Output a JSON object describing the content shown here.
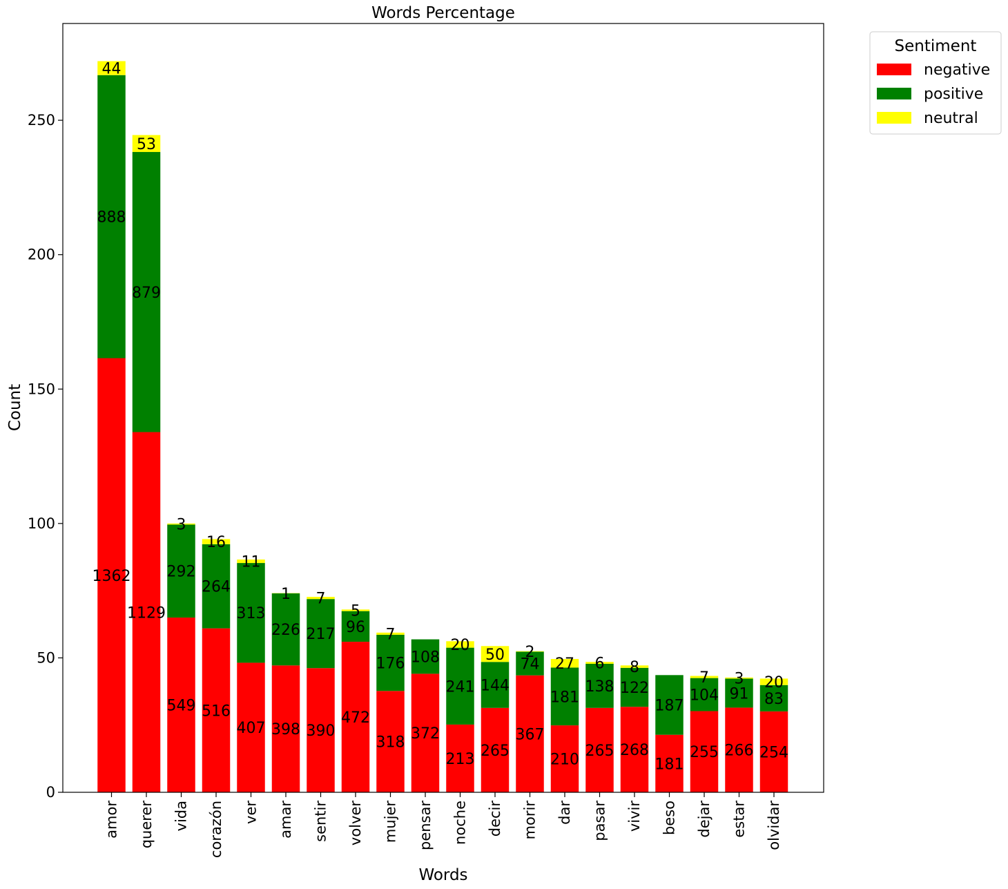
{
  "chart_data": {
    "type": "bar",
    "stacked": true,
    "title": "Words Percentage",
    "xlabel": "Words",
    "ylabel": "Count",
    "ylim": [
      0,
      286
    ],
    "yticks": [
      0,
      50,
      100,
      150,
      200,
      250
    ],
    "grid": false,
    "categories": [
      "amor",
      "querer",
      "vida",
      "corazón",
      "ver",
      "amar",
      "sentir",
      "volver",
      "mujer",
      "pensar",
      "noche",
      "decir",
      "morir",
      "dar",
      "pasar",
      "vivir",
      "beso",
      "dejar",
      "estar",
      "olvidar"
    ],
    "series": [
      {
        "name": "negative",
        "color": "#ff0000",
        "values": [
          161.5,
          134,
          65,
          61,
          48.2,
          47.2,
          46.2,
          56,
          37.7,
          44.1,
          25.2,
          31.4,
          43.5,
          24.9,
          31.4,
          31.8,
          21.4,
          30.2,
          31.5,
          30.1
        ],
        "labels": [
          "1362",
          "1129",
          "549",
          "516",
          "407",
          "398",
          "390",
          "472",
          "318",
          "372",
          "213",
          "265",
          "367",
          "210",
          "265",
          "268",
          "181",
          "255",
          "266",
          "254"
        ]
      },
      {
        "name": "positive",
        "color": "#008000",
        "values": [
          105.3,
          104.2,
          34.6,
          31.3,
          37.1,
          26.8,
          25.7,
          11.4,
          20.9,
          12.8,
          28.6,
          17.1,
          8.8,
          21.5,
          16.4,
          14.5,
          22.2,
          12.3,
          10.8,
          9.8
        ],
        "labels": [
          "888",
          "879",
          "292",
          "264",
          "313",
          "226",
          "217",
          "96",
          "176",
          "108",
          "241",
          "144",
          "74",
          "181",
          "138",
          "122",
          "187",
          "104",
          "91",
          "83"
        ]
      },
      {
        "name": "neutral",
        "color": "#ffff00",
        "values": [
          5.2,
          6.3,
          0.4,
          1.9,
          1.3,
          0.1,
          0.8,
          0.6,
          0.8,
          0,
          2.4,
          5.9,
          0.2,
          3.2,
          0.7,
          0.9,
          0,
          0.8,
          0.4,
          2.4
        ],
        "labels": [
          "44",
          "53",
          "3",
          "16",
          "11",
          "1",
          "7",
          "5",
          "7",
          "",
          "20",
          "50",
          "2",
          "27",
          "6",
          "8",
          "",
          "7",
          "3",
          "20"
        ]
      }
    ],
    "legend": {
      "title": "Sentiment",
      "placement": "outside-top-right",
      "entries": [
        "negative",
        "positive",
        "neutral"
      ]
    }
  }
}
